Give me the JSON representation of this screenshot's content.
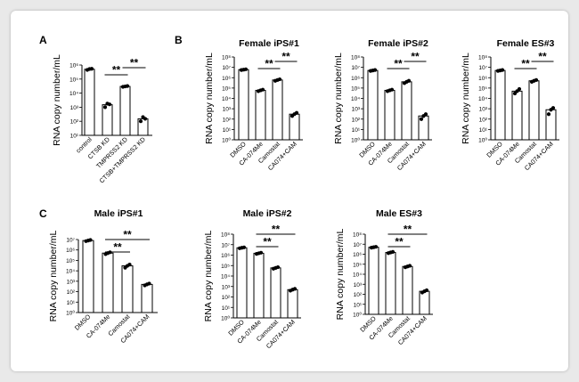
{
  "panel_labels": [
    "A",
    "B",
    "C"
  ],
  "chart_data": [
    {
      "type": "bar",
      "panel": "A",
      "title": "",
      "ylabel": "RNA copy number/mL",
      "yscale": "log",
      "ylim_exp": [
        1,
        6
      ],
      "categories": [
        "control",
        "CTSB KD",
        "TMPRSS2 KD",
        "CTSB+TMPRSS2 KD"
      ],
      "values": [
        500000,
        1500,
        30000,
        150
      ],
      "points": [
        [
          450000,
          520000,
          540000
        ],
        [
          1000,
          1800,
          1600
        ],
        [
          28000,
          30000,
          32000
        ],
        [
          100,
          200,
          150
        ]
      ],
      "significance": [
        {
          "from": 1,
          "to": 2,
          "label": "**"
        },
        {
          "from": 2,
          "to": 3,
          "label": "**"
        }
      ]
    },
    {
      "type": "bar",
      "panel": "B",
      "title": "Female iPS#1",
      "ylabel": "RNA copy number/mL",
      "yscale": "log",
      "ylim_exp": [
        0,
        8
      ],
      "categories": [
        "DMSO",
        "CA-074Me",
        "Camostat",
        "CA074+CAM"
      ],
      "values": [
        6000000,
        60000,
        600000,
        300
      ],
      "points": [
        [
          5500000,
          6000000,
          6500000
        ],
        [
          50000,
          60000,
          70000
        ],
        [
          500000,
          600000,
          700000
        ],
        [
          200,
          300,
          400
        ]
      ],
      "significance": [
        {
          "from": 1,
          "to": 2,
          "label": "**"
        },
        {
          "from": 2,
          "to": 3,
          "label": "**"
        }
      ]
    },
    {
      "type": "bar",
      "panel": "B",
      "title": "Female iPS#2",
      "ylabel": "RNA copy number/mL",
      "yscale": "log",
      "ylim_exp": [
        0,
        8
      ],
      "categories": [
        "DMSO",
        "CA-074Me",
        "Camostat",
        "CA074+CAM"
      ],
      "values": [
        5000000,
        60000,
        400000,
        200
      ],
      "points": [
        [
          4500000,
          5000000,
          5500000
        ],
        [
          50000,
          60000,
          70000
        ],
        [
          300000,
          400000,
          500000
        ],
        [
          100,
          200,
          300
        ]
      ],
      "significance": [
        {
          "from": 1,
          "to": 2,
          "label": "**"
        },
        {
          "from": 2,
          "to": 3,
          "label": "**"
        }
      ]
    },
    {
      "type": "bar",
      "panel": "B",
      "title": "Female ES#3",
      "ylabel": "RNA copy number/mL",
      "yscale": "log",
      "ylim_exp": [
        0,
        8
      ],
      "categories": [
        "DMSO",
        "CA-074Me",
        "Camostat",
        "CA074+CAM"
      ],
      "values": [
        5000000,
        50000,
        500000,
        800
      ],
      "points": [
        [
          4500000,
          5000000,
          5500000
        ],
        [
          30000,
          50000,
          80000
        ],
        [
          400000,
          500000,
          600000
        ],
        [
          300,
          800,
          1200
        ]
      ],
      "significance": [
        {
          "from": 1,
          "to": 2,
          "label": "**"
        },
        {
          "from": 2,
          "to": 3,
          "label": "**"
        }
      ]
    },
    {
      "type": "bar",
      "panel": "C",
      "title": "Male iPS#1",
      "ylabel": "RNA copy number/mL",
      "yscale": "log",
      "ylim_exp": [
        0,
        7
      ],
      "categories": [
        "DMSO",
        "CA-074Me",
        "Camostat",
        "CA074+CAM"
      ],
      "values": [
        8000000,
        500000,
        30000,
        500
      ],
      "points": [
        [
          7000000,
          8000000,
          9000000
        ],
        [
          400000,
          500000,
          600000
        ],
        [
          20000,
          30000,
          40000
        ],
        [
          400,
          500,
          600
        ]
      ],
      "significance": [
        {
          "from": 1,
          "to": 2,
          "label": "**"
        },
        {
          "from": 1,
          "to": 3,
          "label": "**"
        }
      ]
    },
    {
      "type": "bar",
      "panel": "C",
      "title": "Male iPS#2",
      "ylabel": "RNA copy number/mL",
      "yscale": "log",
      "ylim_exp": [
        0,
        8
      ],
      "categories": [
        "DMSO",
        "CA-074Me",
        "Camostat",
        "CA074+CAM"
      ],
      "values": [
        5000000,
        1500000,
        60000,
        500
      ],
      "points": [
        [
          4500000,
          5000000,
          5500000
        ],
        [
          1300000,
          1500000,
          1700000
        ],
        [
          50000,
          60000,
          70000
        ],
        [
          400,
          500,
          600
        ]
      ],
      "significance": [
        {
          "from": 1,
          "to": 2,
          "label": "**"
        },
        {
          "from": 1,
          "to": 3,
          "label": "**"
        }
      ]
    },
    {
      "type": "bar",
      "panel": "C",
      "title": "Male ES#3",
      "ylabel": "RNA copy number/mL",
      "yscale": "log",
      "ylim_exp": [
        0,
        8
      ],
      "categories": [
        "DMSO",
        "CA-074Me",
        "Camostat",
        "CA074+CAM"
      ],
      "values": [
        5000000,
        1500000,
        60000,
        200
      ],
      "points": [
        [
          4500000,
          5000000,
          5500000
        ],
        [
          1300000,
          1500000,
          1700000
        ],
        [
          50000,
          60000,
          70000
        ],
        [
          150,
          200,
          250
        ]
      ],
      "significance": [
        {
          "from": 1,
          "to": 2,
          "label": "**"
        },
        {
          "from": 1,
          "to": 3,
          "label": "**"
        }
      ]
    }
  ]
}
